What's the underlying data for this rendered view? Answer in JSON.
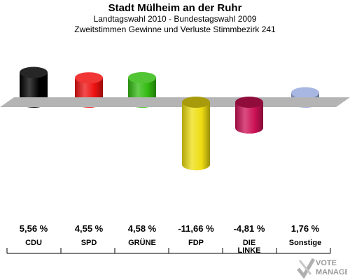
{
  "header": {
    "title": "Stadt Mülheim an der Ruhr",
    "subtitle1": "Landtagswahl 2010 - Bundestagswahl 2009",
    "subtitle2": "Zweitstimmen Gewinne und Verluste Stimmbezirk 241"
  },
  "logo": {
    "line1": "VOTE",
    "line2": "MANAGER"
  },
  "chart_data": {
    "type": "bar",
    "categories": [
      "CDU",
      "SPD",
      "GRÜNE",
      "FDP",
      "DIE LINKE",
      "Sonstige"
    ],
    "category_lines": [
      [
        "CDU"
      ],
      [
        "SPD"
      ],
      [
        "GRÜNE"
      ],
      [
        "FDP"
      ],
      [
        "DIE",
        "LINKE"
      ],
      [
        "Sonstige"
      ]
    ],
    "values": [
      5.56,
      4.55,
      4.58,
      -11.66,
      -4.81,
      1.76
    ],
    "value_labels": [
      "5,56 %",
      "4,55 %",
      "4,58 %",
      "-11,66 %",
      "-4,81 %",
      "1,76 %"
    ],
    "colors": [
      "#000000",
      "#ee1111",
      "#33bb11",
      "#eedd11",
      "#cc1155",
      "#99aadd"
    ],
    "ylim": [
      -12,
      6
    ]
  }
}
